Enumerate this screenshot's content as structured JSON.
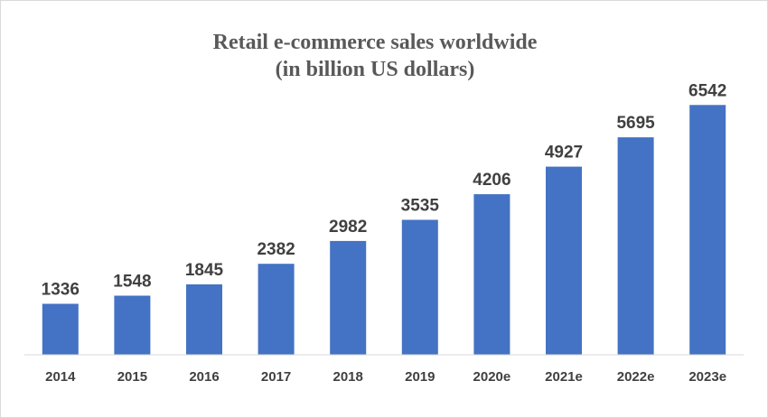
{
  "chart_data": {
    "type": "bar",
    "title": "Retail e-commerce sales worldwide",
    "subtitle": "(in billion US dollars)",
    "categories": [
      "2014",
      "2015",
      "2016",
      "2017",
      "2018",
      "2019",
      "2020e",
      "2021e",
      "2022e",
      "2023e"
    ],
    "values": [
      1336,
      1548,
      1845,
      2382,
      2982,
      3535,
      4206,
      4927,
      5695,
      6542
    ],
    "xlabel": "",
    "ylabel": "",
    "ylim": [
      0,
      7000
    ],
    "grid": false,
    "legend": "none",
    "bar_color": "#4472C4",
    "axis_color": "#d9d9d9",
    "label_color": "#404040"
  }
}
